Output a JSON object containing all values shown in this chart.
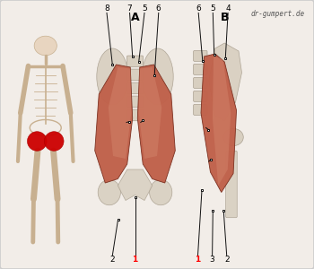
{
  "watermark": "dr-gumpert.de",
  "background_color": "#f2ede8",
  "border_color": "#cccccc",
  "label_A": "A",
  "label_B": "B",
  "skeleton_body_color": "#e8d5c0",
  "muscle_color_main": "#c0614a",
  "muscle_color_light": "#d4876e",
  "bone_color": "#d8cfc0",
  "bone_edge": "#aaa090",
  "highlight_red": "#cc0000",
  "ann_line_color": "#111111",
  "ann_lw": 0.7
}
